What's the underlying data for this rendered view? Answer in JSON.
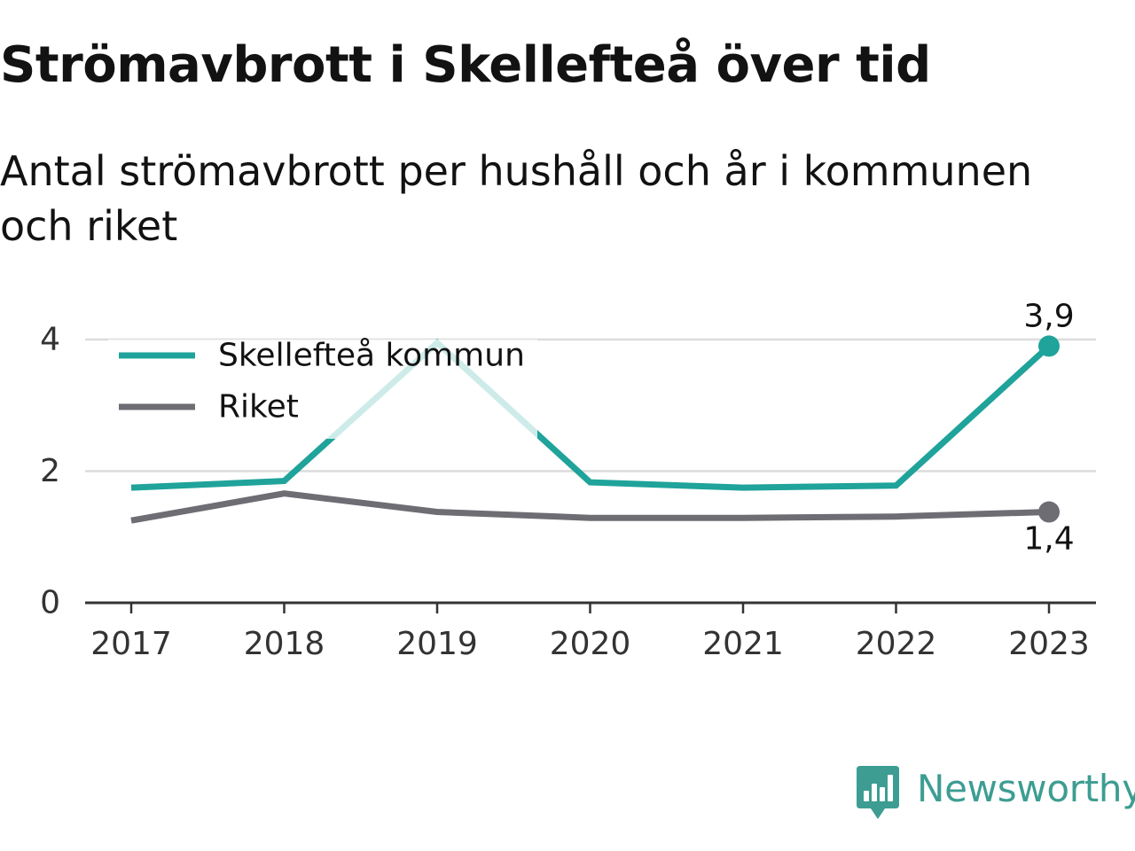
{
  "title": "Strömavbrott i Skellefteå över tid",
  "subtitle": "Antal strömavbrott per hushåll och år i kommunen och riket",
  "brand": {
    "name": "Newsworthy",
    "icon": "newsworthy-logo-icon",
    "color": "#3d9d92"
  },
  "chart_data": {
    "type": "line",
    "x": [
      "2017",
      "2018",
      "2019",
      "2020",
      "2021",
      "2022",
      "2023"
    ],
    "yticks": [
      "0",
      "2",
      "4"
    ],
    "ylim": [
      0,
      4
    ],
    "grid": true,
    "legend_position": "top-left",
    "series": [
      {
        "name": "Skellefteå kommun",
        "color": "#1fa39a",
        "values": [
          1.75,
          1.85,
          3.95,
          1.83,
          1.75,
          1.78,
          3.9
        ],
        "end_label": "3,9"
      },
      {
        "name": "Riket",
        "color": "#6e6d74",
        "values": [
          1.25,
          1.66,
          1.38,
          1.29,
          1.29,
          1.31,
          1.38
        ],
        "end_label": "1,4"
      }
    ]
  }
}
